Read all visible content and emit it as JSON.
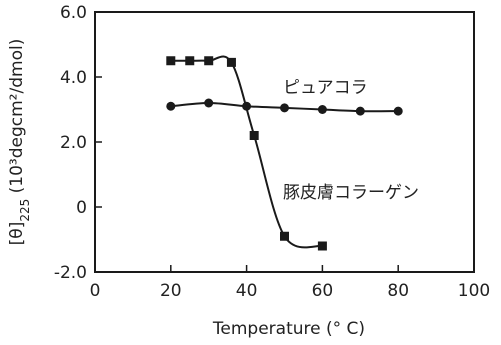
{
  "chart_data": {
    "type": "line",
    "xlabel": "Temperature (° C)",
    "ylabel": "[θ]225 (10³degcm²/dmol)",
    "xlim": [
      0,
      100
    ],
    "ylim": [
      -2.0,
      6.0
    ],
    "x_ticks": [
      "0",
      "20",
      "40",
      "60",
      "80",
      "100"
    ],
    "y_ticks": [
      "6.0",
      "4.0",
      "2.0",
      "0",
      "-2.0"
    ],
    "grid": false,
    "legend": "none",
    "series": [
      {
        "name": "ピュアコラ",
        "marker": "circle",
        "color": "#1a1a1a",
        "x": [
          20,
          30,
          40,
          50,
          60,
          70,
          80
        ],
        "y": [
          3.1,
          3.2,
          3.1,
          3.05,
          3.0,
          2.95,
          2.95
        ]
      },
      {
        "name": "豚皮膚コラーゲン",
        "marker": "square",
        "color": "#1a1a1a",
        "x": [
          20,
          25,
          30,
          36,
          42,
          50,
          60
        ],
        "y": [
          4.5,
          4.5,
          4.5,
          4.45,
          2.2,
          -0.9,
          -1.2
        ]
      }
    ]
  }
}
